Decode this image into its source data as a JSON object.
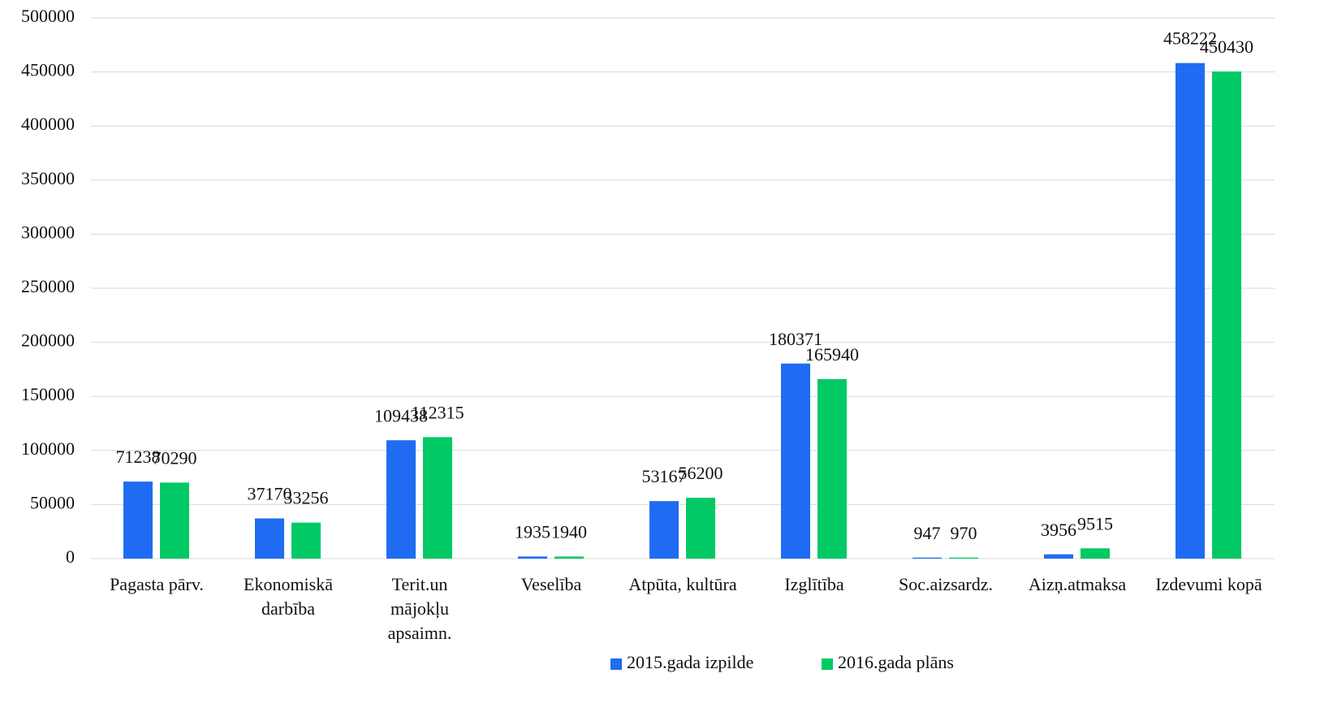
{
  "chart_data": {
    "type": "bar",
    "categories": [
      "Pagasta pārv.",
      "Ekonomiskā darbība",
      "Terit.un mājokļu apsaimn.",
      "Veselība",
      "Atpūta, kultūra",
      "Izglītība",
      "Soc.aizsardz.",
      "Aizņ.atmaksa",
      "Izdevumi kopā"
    ],
    "series": [
      {
        "name": "2015.gada izpilde",
        "color": "#1f6cf2",
        "values": [
          71238,
          37170,
          109438,
          1935,
          53167,
          180371,
          947,
          3956,
          458222
        ]
      },
      {
        "name": "2016.gada plāns",
        "color": "#00c965",
        "values": [
          70290,
          33256,
          112315,
          1940,
          56200,
          165940,
          970,
          9515,
          450430
        ]
      }
    ],
    "ylim": [
      0,
      500000
    ],
    "yticks": [
      0,
      50000,
      100000,
      150000,
      200000,
      250000,
      300000,
      350000,
      400000,
      450000,
      500000
    ],
    "grid": true,
    "legend": "bottom"
  }
}
